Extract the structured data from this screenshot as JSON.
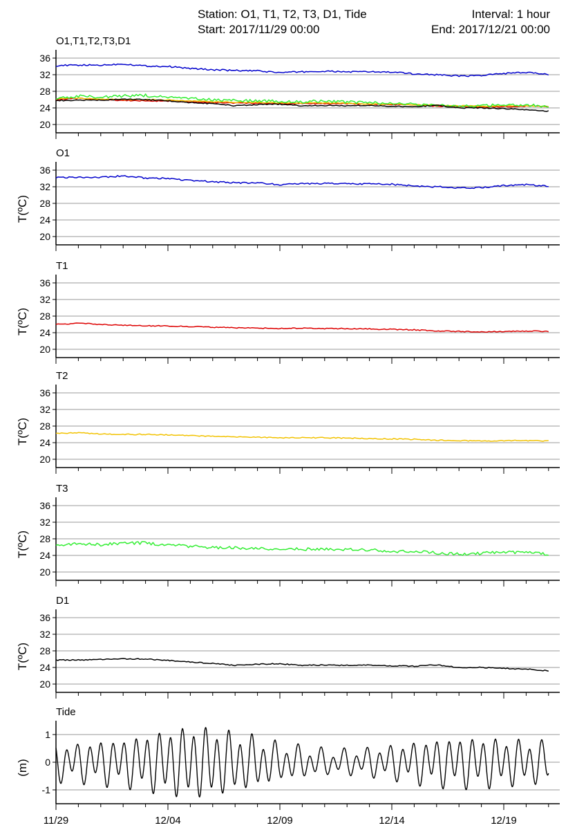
{
  "header": {
    "station": "Station: O1, T1, T2, T3, D1, Tide",
    "interval": "Interval: 1 hour",
    "start": "Start: 2017/11/29 00:00",
    "end": "End: 2017/12/21 00:00"
  },
  "x_tick_labels": [
    "11/29",
    "12/04",
    "12/09",
    "12/14",
    "12/19"
  ],
  "colors": {
    "O1": "#0000cc",
    "T1": "#dd0000",
    "T2": "#f2c200",
    "T3": "#33ee33",
    "D1": "#000000",
    "Tide": "#000000",
    "grid": "#999999"
  },
  "chart_data": [
    {
      "type": "line",
      "title": "O1,T1,T2,T3,D1",
      "ylabel": "",
      "ylim": [
        18,
        38
      ],
      "yticks": [
        20,
        24,
        28,
        32,
        36
      ],
      "xlim": [
        "2017-11-29 00:00",
        "2017-12-21 12:00"
      ],
      "grid": true,
      "x_days": [
        0,
        1,
        2,
        3,
        4,
        5,
        6,
        7,
        8,
        9,
        10,
        11,
        12,
        13,
        14,
        15,
        16,
        17,
        18,
        19,
        20,
        21,
        22
      ],
      "series": [
        {
          "key": "O1",
          "values": [
            34.2,
            34.3,
            34.3,
            34.6,
            34.1,
            34.0,
            33.5,
            33.2,
            33.0,
            32.9,
            32.5,
            32.7,
            32.8,
            32.7,
            32.7,
            32.6,
            32.2,
            32.0,
            31.7,
            31.8,
            32.3,
            32.5,
            32.1
          ]
        },
        {
          "key": "T1",
          "values": [
            26.0,
            26.3,
            26.0,
            25.8,
            25.7,
            25.6,
            25.5,
            25.3,
            25.2,
            25.1,
            25.0,
            25.1,
            25.0,
            25.0,
            24.9,
            24.8,
            24.7,
            24.4,
            24.3,
            24.2,
            24.3,
            24.4,
            24.3
          ]
        },
        {
          "key": "T2",
          "values": [
            26.2,
            26.4,
            26.1,
            26.0,
            26.0,
            25.9,
            25.7,
            25.5,
            25.4,
            25.3,
            25.2,
            25.2,
            25.2,
            25.1,
            25.0,
            24.9,
            24.8,
            24.6,
            24.5,
            24.4,
            24.5,
            24.5,
            24.4
          ]
        },
        {
          "key": "T3",
          "values": [
            26.3,
            26.8,
            26.6,
            26.9,
            27.0,
            26.5,
            26.2,
            25.9,
            25.8,
            25.7,
            25.6,
            25.5,
            25.6,
            25.4,
            25.3,
            25.0,
            24.9,
            24.6,
            24.3,
            24.5,
            24.8,
            24.7,
            24.3
          ]
        },
        {
          "key": "D1",
          "values": [
            25.8,
            25.8,
            25.9,
            26.1,
            26.0,
            25.7,
            25.3,
            25.0,
            24.5,
            24.8,
            24.9,
            24.5,
            24.6,
            24.5,
            24.6,
            24.4,
            24.3,
            24.6,
            24.0,
            24.0,
            23.8,
            23.6,
            23.2
          ]
        }
      ]
    },
    {
      "type": "line",
      "title": "O1",
      "ylabel": "T(ºC)",
      "ylim": [
        18,
        38
      ],
      "yticks": [
        20,
        24,
        28,
        32,
        36
      ],
      "grid": true,
      "x_days": [
        0,
        1,
        2,
        3,
        4,
        5,
        6,
        7,
        8,
        9,
        10,
        11,
        12,
        13,
        14,
        15,
        16,
        17,
        18,
        19,
        20,
        21,
        22
      ],
      "series": [
        {
          "key": "O1",
          "values": [
            34.2,
            34.3,
            34.3,
            34.6,
            34.1,
            34.0,
            33.5,
            33.2,
            33.0,
            32.9,
            32.5,
            32.7,
            32.8,
            32.7,
            32.7,
            32.6,
            32.2,
            32.0,
            31.7,
            31.8,
            32.3,
            32.5,
            32.1
          ]
        }
      ]
    },
    {
      "type": "line",
      "title": "T1",
      "ylabel": "T(ºC)",
      "ylim": [
        18,
        38
      ],
      "yticks": [
        20,
        24,
        28,
        32,
        36
      ],
      "grid": true,
      "x_days": [
        0,
        1,
        2,
        3,
        4,
        5,
        6,
        7,
        8,
        9,
        10,
        11,
        12,
        13,
        14,
        15,
        16,
        17,
        18,
        19,
        20,
        21,
        22
      ],
      "series": [
        {
          "key": "T1",
          "values": [
            26.0,
            26.3,
            26.0,
            25.8,
            25.7,
            25.6,
            25.5,
            25.3,
            25.2,
            25.1,
            25.0,
            25.1,
            25.0,
            25.0,
            24.9,
            24.8,
            24.7,
            24.4,
            24.3,
            24.2,
            24.3,
            24.4,
            24.3
          ]
        }
      ]
    },
    {
      "type": "line",
      "title": "T2",
      "ylabel": "T(ºC)",
      "ylim": [
        18,
        38
      ],
      "yticks": [
        20,
        24,
        28,
        32,
        36
      ],
      "grid": true,
      "x_days": [
        0,
        1,
        2,
        3,
        4,
        5,
        6,
        7,
        8,
        9,
        10,
        11,
        12,
        13,
        14,
        15,
        16,
        17,
        18,
        19,
        20,
        21,
        22
      ],
      "series": [
        {
          "key": "T2",
          "values": [
            26.2,
            26.4,
            26.1,
            26.0,
            26.0,
            25.9,
            25.7,
            25.5,
            25.4,
            25.3,
            25.2,
            25.2,
            25.2,
            25.1,
            25.0,
            24.9,
            24.8,
            24.6,
            24.5,
            24.4,
            24.5,
            24.5,
            24.4
          ]
        }
      ]
    },
    {
      "type": "line",
      "title": "T3",
      "ylabel": "T(ºC)",
      "ylim": [
        18,
        38
      ],
      "yticks": [
        20,
        24,
        28,
        32,
        36
      ],
      "grid": true,
      "x_days": [
        0,
        1,
        2,
        3,
        4,
        5,
        6,
        7,
        8,
        9,
        10,
        11,
        12,
        13,
        14,
        15,
        16,
        17,
        18,
        19,
        20,
        21,
        22
      ],
      "series": [
        {
          "key": "T3",
          "values": [
            26.3,
            26.8,
            26.6,
            26.9,
            27.0,
            26.5,
            26.2,
            25.9,
            25.8,
            25.7,
            25.6,
            25.5,
            25.6,
            25.4,
            25.3,
            25.0,
            24.9,
            24.6,
            24.3,
            24.5,
            24.8,
            24.7,
            24.3
          ]
        }
      ]
    },
    {
      "type": "line",
      "title": "D1",
      "ylabel": "T(ºC)",
      "ylim": [
        18,
        38
      ],
      "yticks": [
        20,
        24,
        28,
        32,
        36
      ],
      "grid": true,
      "x_days": [
        0,
        1,
        2,
        3,
        4,
        5,
        6,
        7,
        8,
        9,
        10,
        11,
        12,
        13,
        14,
        15,
        16,
        17,
        18,
        19,
        20,
        21,
        22
      ],
      "series": [
        {
          "key": "D1",
          "values": [
            25.8,
            25.8,
            25.9,
            26.1,
            26.0,
            25.7,
            25.3,
            25.0,
            24.5,
            24.8,
            24.9,
            24.5,
            24.6,
            24.5,
            24.6,
            24.4,
            24.3,
            24.6,
            24.0,
            24.0,
            23.8,
            23.6,
            23.2
          ]
        }
      ]
    },
    {
      "type": "line",
      "title": "Tide",
      "ylabel": "(m)",
      "ylim": [
        -1.5,
        1.5
      ],
      "yticks": [
        -1,
        0,
        1
      ],
      "yticklabels": [
        "-1",
        "0",
        "1"
      ],
      "grid": true,
      "tide_model": {
        "mean": 0.0,
        "semidiurnal_period_h": 12.42,
        "diurnal_period_h": 24.0,
        "semidiurnal_amp_by_day": [
          0.55,
          0.55,
          0.65,
          0.7,
          0.85,
          1.0,
          1.1,
          1.05,
          0.9,
          0.75,
          0.55,
          0.45,
          0.35,
          0.35,
          0.4,
          0.5,
          0.6,
          0.7,
          0.75,
          0.75,
          0.7,
          0.65,
          0.6
        ],
        "diurnal_amp_by_day": [
          0.25,
          0.25,
          0.25,
          0.25,
          0.25,
          0.25,
          0.25,
          0.25,
          0.25,
          0.25,
          0.2,
          0.2,
          0.2,
          0.2,
          0.2,
          0.2,
          0.25,
          0.25,
          0.25,
          0.25,
          0.25,
          0.25,
          0.25
        ]
      }
    }
  ]
}
